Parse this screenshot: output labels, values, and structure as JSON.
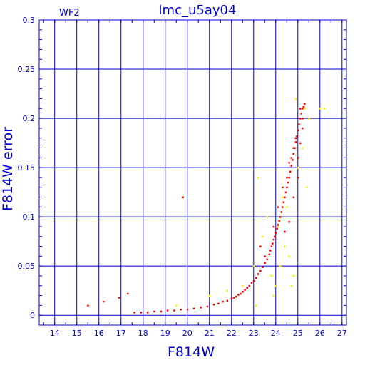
{
  "chart_data": {
    "type": "scatter",
    "title": "lmc_u5ay04",
    "annotation": "WF2",
    "xlabel": "F814W",
    "ylabel": "F814W error",
    "xlim": [
      13.3,
      27.2
    ],
    "ylim": [
      -0.01,
      0.3
    ],
    "xticks": [
      14,
      15,
      16,
      17,
      18,
      19,
      20,
      21,
      22,
      23,
      24,
      25,
      26,
      27
    ],
    "yticks": [
      0,
      0.05,
      0.1,
      0.15,
      0.2,
      0.25,
      0.3
    ],
    "ytick_labels": [
      "0",
      "0.05",
      "0.1",
      "0.15",
      "0.2",
      "0.25",
      "0.3"
    ],
    "grid": true,
    "colors": {
      "axis": "#0000cc",
      "grid": "#0000cc",
      "series_main": "#ff0000",
      "series_secondary": "#ffee00"
    },
    "series": [
      {
        "color": "#ff0000",
        "x": [
          15.5,
          16.2,
          16.9,
          17.3,
          17.6,
          17.9,
          18.2,
          18.5,
          18.8,
          19.1,
          19.4,
          19.7,
          19.8,
          20.0,
          20.3,
          20.6,
          20.9,
          21.2,
          21.4,
          21.6,
          21.8,
          22.0,
          22.1,
          22.2,
          22.3,
          22.4,
          22.5,
          22.6,
          22.7,
          22.8,
          22.9,
          23.0,
          23.1,
          23.2,
          23.3,
          23.4,
          23.5,
          23.6,
          23.7,
          23.75,
          23.8,
          23.85,
          23.9,
          23.95,
          24.0,
          24.05,
          24.1,
          24.15,
          24.2,
          24.25,
          24.3,
          24.35,
          24.4,
          24.45,
          24.5,
          24.55,
          24.6,
          24.65,
          24.7,
          24.75,
          24.8,
          24.85,
          24.9,
          24.95,
          25.0,
          25.05,
          25.1,
          25.15,
          25.2,
          25.25,
          25.3,
          23.3,
          23.5,
          23.9,
          24.1,
          24.3,
          24.5,
          24.6,
          24.7,
          24.8,
          24.9,
          25.0,
          25.1,
          25.2,
          24.4,
          24.6,
          24.8,
          25.0,
          25.2,
          25.1
        ],
        "y": [
          0.01,
          0.014,
          0.018,
          0.022,
          0.003,
          0.003,
          0.003,
          0.004,
          0.004,
          0.005,
          0.005,
          0.006,
          0.12,
          0.006,
          0.007,
          0.008,
          0.009,
          0.011,
          0.012,
          0.014,
          0.015,
          0.017,
          0.018,
          0.019,
          0.021,
          0.022,
          0.024,
          0.026,
          0.028,
          0.03,
          0.033,
          0.035,
          0.038,
          0.042,
          0.045,
          0.049,
          0.053,
          0.057,
          0.062,
          0.066,
          0.07,
          0.073,
          0.077,
          0.08,
          0.084,
          0.088,
          0.092,
          0.096,
          0.1,
          0.105,
          0.11,
          0.115,
          0.12,
          0.125,
          0.13,
          0.135,
          0.14,
          0.146,
          0.152,
          0.158,
          0.164,
          0.17,
          0.176,
          0.182,
          0.188,
          0.194,
          0.2,
          0.205,
          0.21,
          0.212,
          0.215,
          0.07,
          0.06,
          0.09,
          0.11,
          0.13,
          0.14,
          0.155,
          0.16,
          0.17,
          0.18,
          0.16,
          0.175,
          0.2,
          0.085,
          0.095,
          0.12,
          0.14,
          0.19,
          0.21
        ]
      },
      {
        "color": "#ffee00",
        "x": [
          19.5,
          21.0,
          21.8,
          22.5,
          23.0,
          23.2,
          23.4,
          23.6,
          23.8,
          24.0,
          24.2,
          24.4,
          24.6,
          24.8,
          25.0,
          25.2,
          25.3,
          25.5,
          26.0,
          26.2,
          24.7,
          24.9,
          24.3,
          23.9,
          23.1,
          25.4,
          24.5,
          24.1
        ],
        "y": [
          0.01,
          0.02,
          0.025,
          0.03,
          0.05,
          0.14,
          0.08,
          0.1,
          0.04,
          0.03,
          0.05,
          0.07,
          0.06,
          0.04,
          0.15,
          0.17,
          0.21,
          0.2,
          0.21,
          0.21,
          0.03,
          0.22,
          0.12,
          0.02,
          0.01,
          0.13,
          0.11,
          0.09
        ]
      }
    ]
  }
}
